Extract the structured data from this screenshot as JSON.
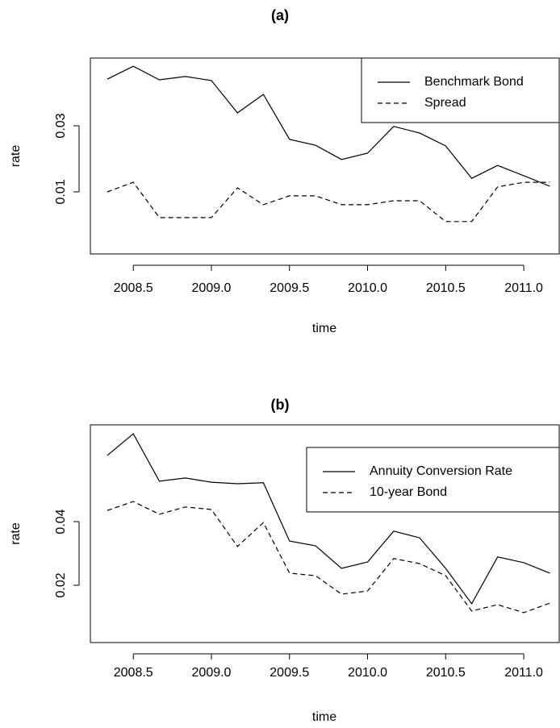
{
  "chart_data": [
    {
      "type": "line",
      "title": "(a)",
      "x_label": "time",
      "y_label": "rate",
      "x": [
        2008.333,
        2008.5,
        2008.667,
        2008.833,
        2009.0,
        2009.167,
        2009.333,
        2009.5,
        2009.667,
        2009.833,
        2010.0,
        2010.167,
        2010.333,
        2010.5,
        2010.667,
        2010.833,
        2011.0,
        2011.167
      ],
      "series": [
        {
          "name": "Benchmark Bond",
          "color": "#000000",
          "linestyle": "solid",
          "values": [
            0.0441,
            0.048,
            0.0439,
            0.0449,
            0.0437,
            0.0339,
            0.0395,
            0.0259,
            0.0241,
            0.0198,
            0.0217,
            0.0298,
            0.0278,
            0.0239,
            0.0141,
            0.018,
            0.0149,
            0.0117
          ]
        },
        {
          "name": "Spread",
          "color": "#000000",
          "linestyle": "dashed",
          "values": [
            0.01,
            0.0129,
            0.0022,
            0.0022,
            0.0022,
            0.0112,
            0.0061,
            0.0088,
            0.0088,
            0.0061,
            0.0061,
            0.0073,
            0.0073,
            0.001,
            0.001,
            0.0115,
            0.0129,
            0.0129
          ]
        }
      ],
      "xlim": [
        2008.225,
        2011.227
      ],
      "ylim": [
        -0.0088,
        0.0505
      ],
      "xticks": [
        2008.5,
        {
          "value": 2009,
          "label": "2009.0"
        },
        2009.5,
        {
          "value": 2010,
          "label": "2010.0"
        },
        2010.5,
        {
          "value": 2011,
          "label": "2011.0"
        }
      ],
      "yticks": [
        0.01,
        0.03
      ],
      "legend": "top-right"
    },
    {
      "type": "line",
      "title": "(b)",
      "x_label": "time",
      "y_label": "rate",
      "x": [
        2008.333,
        2008.5,
        2008.667,
        2008.833,
        2009.0,
        2009.167,
        2009.333,
        2009.5,
        2009.667,
        2009.833,
        2010.0,
        2010.167,
        2010.333,
        2010.5,
        2010.667,
        2010.833,
        2011.0,
        2011.167
      ],
      "series": [
        {
          "name": "Annuity Conversion Rate",
          "color": "#000000",
          "linestyle": "solid",
          "values": [
            0.0608,
            0.0676,
            0.0527,
            0.0537,
            0.0524,
            0.0519,
            0.0522,
            0.0339,
            0.0324,
            0.0253,
            0.0273,
            0.037,
            0.0349,
            0.0253,
            0.0142,
            0.0289,
            0.0271,
            0.0238
          ]
        },
        {
          "name": "10-year Bond",
          "color": "#000000",
          "linestyle": "dashed",
          "values": [
            0.0435,
            0.0463,
            0.0423,
            0.0446,
            0.0438,
            0.0322,
            0.0397,
            0.0238,
            0.023,
            0.0172,
            0.0182,
            0.0284,
            0.0268,
            0.023,
            0.0119,
            0.0139,
            0.0114,
            0.0144
          ]
        }
      ],
      "xlim": [
        2008.225,
        2011.227
      ],
      "ylim": [
        0.002,
        0.0704
      ],
      "xticks": [
        2008.5,
        {
          "value": 2009,
          "label": "2009.0"
        },
        2009.5,
        {
          "value": 2010,
          "label": "2010.0"
        },
        2010.5,
        {
          "value": 2011,
          "label": "2011.0"
        }
      ],
      "yticks": [
        0.02,
        0.04
      ],
      "legend": "top-right"
    }
  ]
}
